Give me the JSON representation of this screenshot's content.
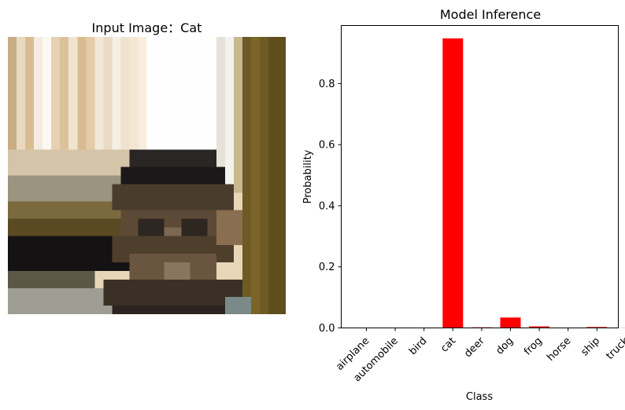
{
  "left_panel": {
    "title": "Input Image：Cat"
  },
  "chart_data": {
    "type": "bar",
    "title": "Model Inference",
    "xlabel": "Class",
    "ylabel": "Probability",
    "categories": [
      "airplane",
      "automobile",
      "bird",
      "cat",
      "deer",
      "dog",
      "frog",
      "horse",
      "ship",
      "truck"
    ],
    "values": [
      0.0005,
      0.0005,
      0.0008,
      0.948,
      0.002,
      0.034,
      0.005,
      0.001,
      0.003,
      0.0005
    ],
    "ylim": [
      0,
      0.99
    ],
    "yticks": [
      "0.0",
      "0.2",
      "0.4",
      "0.6",
      "0.8"
    ],
    "bar_color": "#ff0000",
    "grid": false
  }
}
